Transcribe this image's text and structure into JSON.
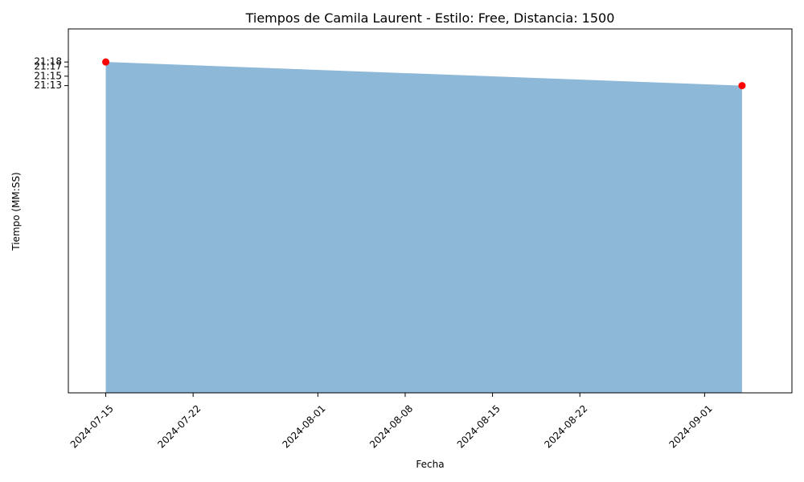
{
  "chart_data": {
    "type": "area",
    "title": "Tiempos de Camila Laurent - Estilo: Free, Distancia: 1500",
    "xlabel": "Fecha",
    "ylabel": "Tiempo (MM:SS)",
    "x": [
      "2024-07-15",
      "2024-09-04"
    ],
    "y_labels": [
      "21:18",
      "21:13"
    ],
    "y_seconds": [
      1278,
      1273
    ],
    "xlim": [
      "2024-07-12",
      "2024-09-08"
    ],
    "ylim_seconds": [
      1208,
      1285
    ],
    "x_ticks": [
      "2024-07-15",
      "2024-07-22",
      "2024-08-01",
      "2024-08-08",
      "2024-08-15",
      "2024-08-22",
      "2024-09-01"
    ],
    "y_ticks": [
      {
        "label": "21:13",
        "seconds": 1273
      },
      {
        "label": "21:15",
        "seconds": 1275
      },
      {
        "label": "21:17",
        "seconds": 1277
      },
      {
        "label": "21:18",
        "seconds": 1278
      }
    ],
    "colors": {
      "fill": "#8db8d8",
      "marker": "#ff0000"
    },
    "grid": false
  }
}
